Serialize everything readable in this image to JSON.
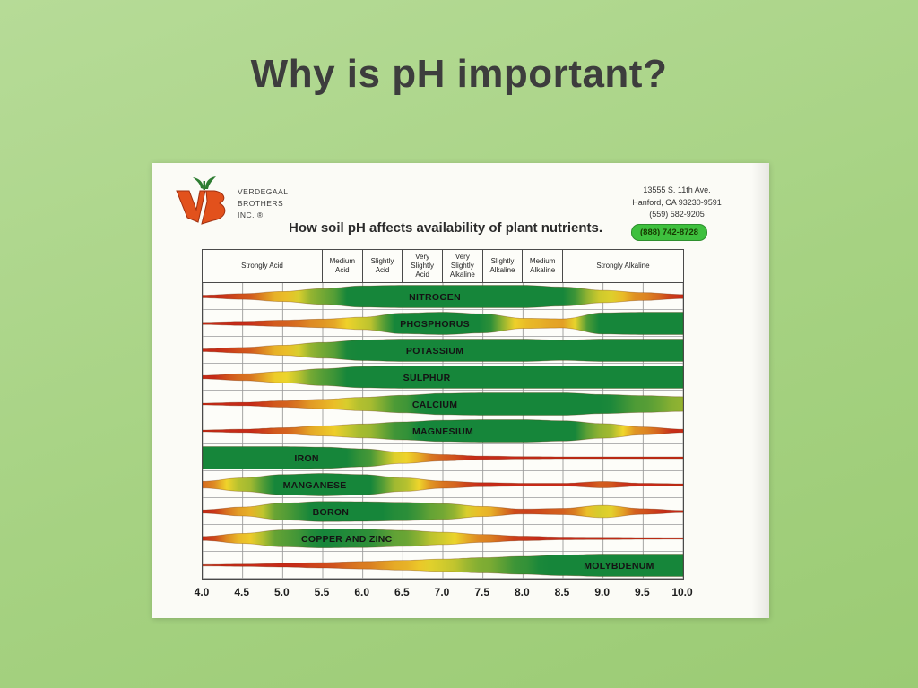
{
  "slide": {
    "title": "Why is pH important?"
  },
  "header": {
    "logo_lines": [
      "VERDEGAAL",
      "BROTHERS",
      "INC. ®"
    ],
    "chart_title": "How soil pH affects availability of plant nutrients.",
    "address_lines": [
      "13555 S. 11th Ave.",
      "Hanford, CA 93230-9591",
      "(559) 582-9205"
    ],
    "phone_badge": "(888) 742-8728"
  },
  "colors": {
    "slide_bg": "#a6d282",
    "badge_green": "#3ec03e",
    "band_red": "#c62a18",
    "band_yellow": "#f0d62b",
    "band_green": "#16863a",
    "logo_orange": "#e2511c"
  },
  "chart_data": {
    "type": "area",
    "title": "How soil pH affects availability of plant nutrients.",
    "xlabel": "",
    "ylabel": "",
    "x": [
      4.0,
      4.5,
      5.0,
      5.5,
      6.0,
      6.5,
      7.0,
      7.5,
      8.0,
      8.5,
      9.0,
      9.5,
      10.0
    ],
    "x_tick_labels": [
      "4.0",
      "4.5",
      "5.0",
      "5.5",
      "6.0",
      "6.5",
      "7.0",
      "7.5",
      "8.0",
      "8.5",
      "9.0",
      "9.5",
      "10.0"
    ],
    "value_note": "values are relative nutrient availability (0-1) shown as band thickness; color follows availability red-yellow-green",
    "column_headers": [
      {
        "label": "Strongly Acid",
        "from": 4.0,
        "to": 5.5
      },
      {
        "label": "Medium Acid",
        "from": 5.5,
        "to": 6.0
      },
      {
        "label": "Slightly Acid",
        "from": 6.0,
        "to": 6.5
      },
      {
        "label": "Very Slightly Acid",
        "from": 6.5,
        "to": 7.0
      },
      {
        "label": "Very Slightly Alkaline",
        "from": 7.0,
        "to": 7.5
      },
      {
        "label": "Slightly Alkaline",
        "from": 7.5,
        "to": 8.0
      },
      {
        "label": "Medium Alkaline",
        "from": 8.0,
        "to": 8.5
      },
      {
        "label": "Strongly Alkaline",
        "from": 8.5,
        "to": 10.0
      }
    ],
    "series": [
      {
        "name": "NITROGEN",
        "label_ph": 6.9,
        "values": [
          0.12,
          0.25,
          0.45,
          0.7,
          0.95,
          1,
          1,
          1,
          1,
          0.85,
          0.55,
          0.35,
          0.18
        ]
      },
      {
        "name": "PHOSPHORUS",
        "label_ph": 6.9,
        "values": [
          0.1,
          0.18,
          0.28,
          0.38,
          0.55,
          0.92,
          1,
          0.85,
          0.45,
          0.4,
          0.95,
          1,
          1
        ]
      },
      {
        "name": "POTASSIUM",
        "label_ph": 6.9,
        "values": [
          0.12,
          0.25,
          0.45,
          0.7,
          0.92,
          1,
          1,
          1,
          1,
          0.9,
          1,
          1,
          1
        ]
      },
      {
        "name": "SULPHUR",
        "label_ph": 6.8,
        "values": [
          0.15,
          0.3,
          0.5,
          0.75,
          0.95,
          1,
          1,
          1,
          1,
          1,
          1,
          1,
          1
        ]
      },
      {
        "name": "CALCIUM",
        "label_ph": 6.9,
        "values": [
          0.08,
          0.15,
          0.28,
          0.42,
          0.6,
          0.78,
          0.95,
          1,
          1,
          1,
          0.85,
          0.75,
          0.65
        ]
      },
      {
        "name": "MAGNESIUM",
        "label_ph": 7.0,
        "values": [
          0.08,
          0.15,
          0.28,
          0.45,
          0.62,
          0.8,
          0.95,
          1,
          1,
          0.9,
          0.65,
          0.35,
          0.15
        ]
      },
      {
        "name": "IRON",
        "label_ph": 5.3,
        "values": [
          1,
          1,
          1,
          0.95,
          0.8,
          0.5,
          0.28,
          0.15,
          0.1,
          0.08,
          0.08,
          0.08,
          0.08
        ]
      },
      {
        "name": "MANGANESE",
        "label_ph": 5.4,
        "values": [
          0.3,
          0.6,
          0.9,
          1,
          0.9,
          0.6,
          0.32,
          0.18,
          0.12,
          0.12,
          0.28,
          0.12,
          0.08
        ]
      },
      {
        "name": "BORON",
        "label_ph": 5.6,
        "values": [
          0.15,
          0.4,
          0.75,
          0.9,
          0.88,
          0.82,
          0.7,
          0.45,
          0.22,
          0.28,
          0.55,
          0.25,
          0.1
        ]
      },
      {
        "name": "COPPER AND ZINC",
        "label_ph": 5.8,
        "values": [
          0.18,
          0.45,
          0.75,
          0.85,
          0.82,
          0.72,
          0.55,
          0.35,
          0.2,
          0.12,
          0.1,
          0.08,
          0.07
        ]
      },
      {
        "name": "MOLYBDENUM",
        "label_ph": 9.2,
        "values": [
          0.06,
          0.1,
          0.16,
          0.24,
          0.33,
          0.43,
          0.55,
          0.68,
          0.8,
          0.92,
          1,
          1,
          1
        ]
      }
    ]
  }
}
